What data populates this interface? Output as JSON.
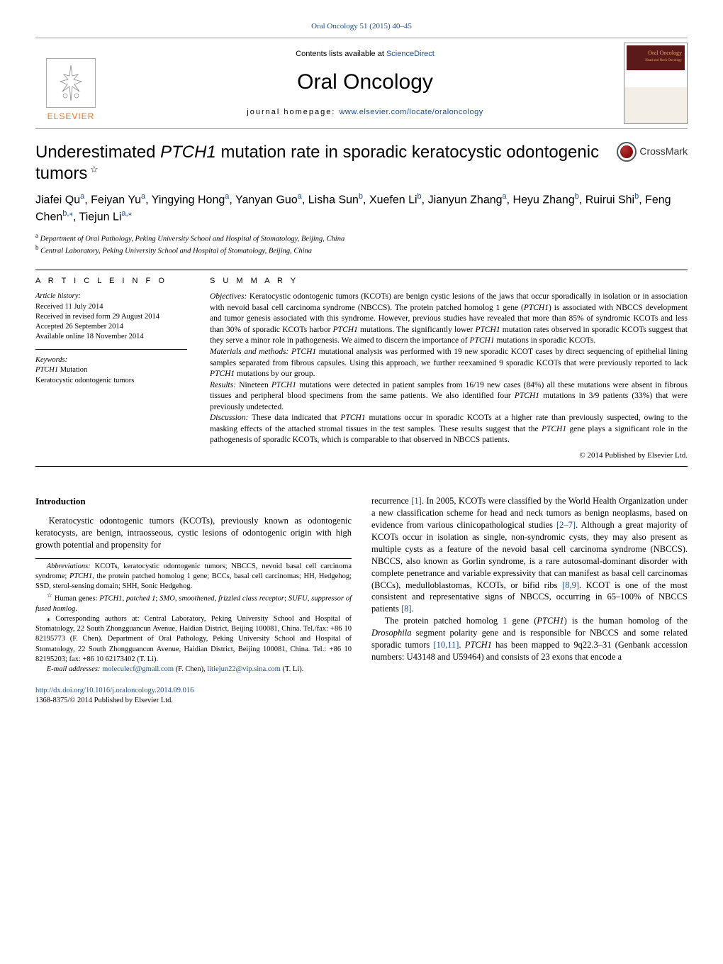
{
  "citation": {
    "text": "Oral Oncology 51 (2015) 40–45"
  },
  "banner": {
    "contents_line_prefix": "Contents lists available at ",
    "contents_line_link": "ScienceDirect",
    "journal_name": "Oral Oncology",
    "homepage_prefix": "journal homepage: ",
    "homepage_link": "www.elsevier.com/locate/oraloncology",
    "elsevier_text": "ELSEVIER",
    "cover_label": "Oral Oncology",
    "cover_sub": "Head and Neck Oncology"
  },
  "crossmark": "CrossMark",
  "title": {
    "pre_ital": "Underestimated ",
    "ital": "PTCH1",
    "post_ital": " mutation rate in sporadic keratocystic odontogenic tumors",
    "star": " ☆"
  },
  "authors_html": "Jiafei Qu ||a||, Feiyan Yu ||a||, Yingying Hong ||a||, Yanyan Guo ||a||, Lisha Sun ||b||, Xuefen Li ||b||, Jianyun Zhang ||a||, Heyu Zhang ||b||, Ruirui Shi ||b||, Feng Chen ||b,*||, Tiejun Li ||a,*||",
  "affiliations": {
    "a": "Department of Oral Pathology, Peking University School and Hospital of Stomatology, Beijing, China",
    "b": "Central Laboratory, Peking University School and Hospital of Stomatology, Beijing, China"
  },
  "article_info_heading": "A R T I C L E    I N F O",
  "summary_heading": "S U M M A R Y",
  "history": {
    "label": "Article history:",
    "received": "Received 11 July 2014",
    "revised": "Received in revised form 29 August 2014",
    "accepted": "Accepted 26 September 2014",
    "online": "Available online 18 November 2014"
  },
  "keywords": {
    "label": "Keywords:",
    "items": [
      "PTCH1",
      "Mutation",
      "Keratocystic odontogenic tumors"
    ]
  },
  "summary": {
    "objectives_label": "Objectives:",
    "objectives": " Keratocystic odontogenic tumors (KCOTs) are benign cystic lesions of the jaws that occur sporadically in isolation or in association with nevoid basal cell carcinoma syndrome (NBCCS). The protein patched homolog 1 gene (PTCH1) is associated with NBCCS development and tumor genesis associated with this syndrome. However, previous studies have revealed that more than 85% of syndromic KCOTs and less than 30% of sporadic KCOTs harbor PTCH1 mutations. The significantly lower PTCH1 mutation rates observed in sporadic KCOTs suggest that they serve a minor role in pathogenesis. We aimed to discern the importance of PTCH1 mutations in sporadic KCOTs.",
    "methods_label": "Materials and methods:",
    "methods": " PTCH1 mutational analysis was performed with 19 new sporadic KCOT cases by direct sequencing of epithelial lining samples separated from fibrous capsules. Using this approach, we further reexamined 9 sporadic KCOTs that were previously reported to lack PTCH1 mutations by our group.",
    "results_label": "Results:",
    "results": " Nineteen PTCH1 mutations were detected in patient samples from 16/19 new cases (84%) all these mutations were absent in fibrous tissues and peripheral blood specimens from the same patients. We also identified four PTCH1 mutations in 3/9 patients (33%) that were previously undetected.",
    "discussion_label": "Discussion:",
    "discussion": " These data indicated that PTCH1 mutations occur in sporadic KCOTs at a higher rate than previously suspected, owing to the masking effects of the attached stromal tissues in the test samples. These results suggest that the PTCH1 gene plays a significant role in the pathogenesis of sporadic KCOTs, which is comparable to that observed in NBCCS patients."
  },
  "copyright": "© 2014 Published by Elsevier Ltd.",
  "intro_heading": "Introduction",
  "intro_col1_p1": "Keratocystic odontogenic tumors (KCOTs), previously known as odontogenic keratocysts, are benign, intraosseous, cystic lesions of odontogenic origin with high growth potential and propensity for",
  "footnotes": {
    "abbrev_label": "Abbreviations:",
    "abbrev_text": " KCOTs, keratocystic odontogenic tumors; NBCCS, nevoid basal cell carcinoma syndrome; PTCH1, the protein patched homolog 1 gene; BCCs, basal cell carcinomas; HH, Hedgehog; SSD, sterol-sensing domain; SHH, Sonic Hedgehog.",
    "star_label": "☆",
    "star_text": " Human genes: PTCH1, patched 1; SMO, smoothened, frizzled class receptor; SUFU, suppressor of fused homlog.",
    "corr_label": "⁎",
    "corr_text": " Corresponding authors at: Central Laboratory, Peking University School and Hospital of Stomatology, 22 South Zhongguancun Avenue, Haidian District, Beijing 100081, China. Tel./fax: +86 10 82195773 (F. Chen). Department of Oral Pathology, Peking University School and Hospital of Stomatology, 22 South Zhongguancun Avenue, Haidian District, Beijing 100081, China. Tel.: +86 10 82195203; fax: +86 10 62173402 (T. Li).",
    "email_label": "E-mail addresses:",
    "email1": "moleculecf@gmail.com",
    "email1_paren": " (F. Chen), ",
    "email2": "litiejun22@vip.sina.com",
    "email2_paren": " (T. Li)."
  },
  "intro_col2_p1": "recurrence [1]. In 2005, KCOTs were classified by the World Health Organization under a new classification scheme for head and neck tumors as benign neoplasms, based on evidence from various clinicopathological studies [2–7]. Although a great majority of KCOTs occur in isolation as single, non-syndromic cysts, they may also present as multiple cysts as a feature of the nevoid basal cell carcinoma syndrome (NBCCS). NBCCS, also known as Gorlin syndrome, is a rare autosomal-dominant disorder with complete penetrance and variable expressivity that can manifest as basal cell carcinomas (BCCs), medulloblastomas, KCOTs, or bifid ribs [8,9]. KCOT is one of the most consistent and representative signs of NBCCS, occurring in 65–100% of NBCCS patients [8].",
  "intro_col2_p2": "The protein patched homolog 1 gene (PTCH1) is the human homolog of the Drosophila segment polarity gene and is responsible for NBCCS and some related sporadic tumors [10,11]. PTCH1 has been mapped to 9q22.3–31 (Genbank accession numbers: U43148 and U59464) and consists of 23 exons that encode a",
  "doi": {
    "url": "http://dx.doi.org/10.1016/j.oraloncology.2014.09.016",
    "line2": "1368-8375/© 2014 Published by Elsevier Ltd."
  },
  "colors": {
    "link": "#1a4d8f",
    "elsevier_orange": "#e87722",
    "cover_bg": "#5b1a1a",
    "cover_text": "#e9a45a"
  }
}
